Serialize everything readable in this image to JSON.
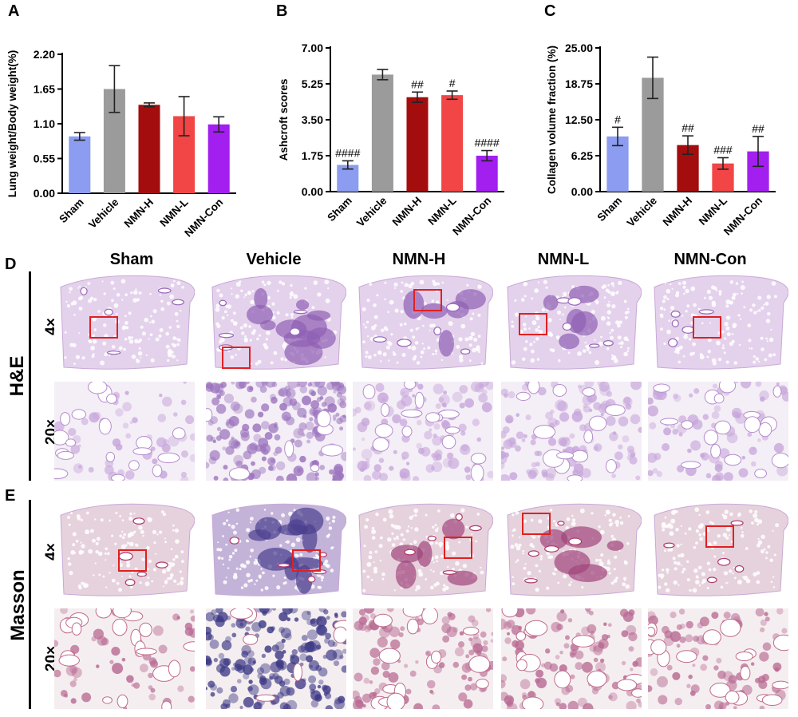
{
  "panels": {
    "A": "A",
    "B": "B",
    "C": "C",
    "D": "D",
    "E": "E"
  },
  "groups": [
    "Sham",
    "Vehicle",
    "NMN-H",
    "NMN-L",
    "NMN-Con"
  ],
  "bar_colors": [
    "#8c9cf0",
    "#9b9b9b",
    "#a40d0d",
    "#f24545",
    "#a21ff0"
  ],
  "chart_data": [
    {
      "type": "bar",
      "panel": "A",
      "title": "",
      "ylabel": "Lung weight/Body weight(%)",
      "categories": [
        "Sham",
        "Vehicle",
        "NMN-H",
        "NMN-L",
        "NMN-Con"
      ],
      "values": [
        0.9,
        1.65,
        1.4,
        1.22,
        1.09
      ],
      "errors": [
        0.06,
        0.37,
        0.03,
        0.31,
        0.12
      ],
      "annotations": [
        "",
        "",
        "",
        "",
        ""
      ],
      "ylim": [
        0,
        2.2
      ],
      "yticks": [
        "0.00",
        "0.55",
        "1.10",
        "1.65",
        "2.20"
      ]
    },
    {
      "type": "bar",
      "panel": "B",
      "title": "",
      "ylabel": "Ashcroft scores",
      "categories": [
        "Sham",
        "Vehicle",
        "NMN-H",
        "NMN-L",
        "NMN-Con"
      ],
      "values": [
        1.3,
        5.7,
        4.6,
        4.7,
        1.75
      ],
      "errors": [
        0.2,
        0.25,
        0.25,
        0.2,
        0.25
      ],
      "annotations": [
        "####",
        "",
        "##",
        "#",
        "####"
      ],
      "ylim": [
        0,
        7
      ],
      "yticks": [
        "0.00",
        "1.75",
        "3.50",
        "5.25",
        "7.00"
      ]
    },
    {
      "type": "bar",
      "panel": "C",
      "title": "",
      "ylabel": "Collagen volume fraction (%)",
      "categories": [
        "Sham",
        "Vehicle",
        "NMN-H",
        "NMN-L",
        "NMN-Con"
      ],
      "values": [
        9.6,
        19.8,
        8.1,
        4.9,
        7.0
      ],
      "errors": [
        1.6,
        3.6,
        1.6,
        1.0,
        2.6
      ],
      "annotations": [
        "#",
        "",
        "##",
        "###",
        "##"
      ],
      "ylim": [
        0,
        25
      ],
      "yticks": [
        "0.00",
        "6.25",
        "12.50",
        "18.75",
        "25.00"
      ]
    }
  ],
  "histology": {
    "stains": [
      "H&E",
      "Masson"
    ],
    "magnifications": [
      "4×",
      "20×"
    ]
  }
}
